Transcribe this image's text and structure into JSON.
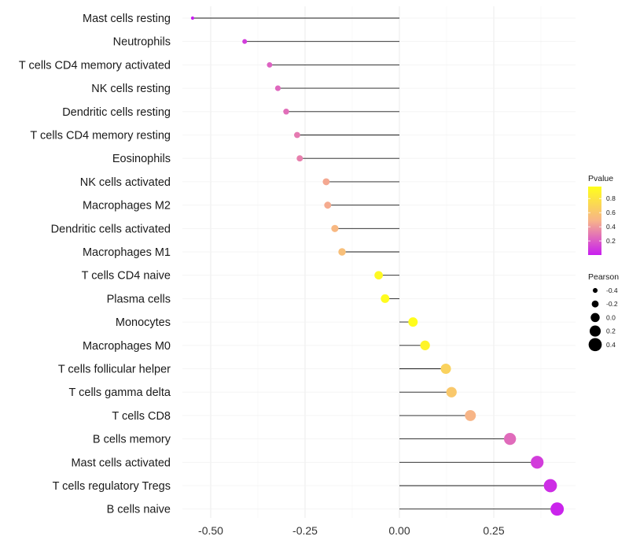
{
  "chart_data": {
    "type": "lollipop",
    "title": "",
    "xlabel": "",
    "ylabel": "",
    "xlim": [
      -0.55,
      0.45
    ],
    "xticks": [
      -0.5,
      -0.25,
      0.0,
      0.25
    ],
    "xtick_labels": [
      "-0.50",
      "-0.25",
      "0.00",
      "0.25"
    ],
    "grid": true,
    "categories": [
      "Mast cells resting",
      "Neutrophils",
      "T cells CD4 memory activated",
      "NK cells resting",
      "Dendritic cells resting",
      "T cells CD4 memory resting",
      "Eosinophils",
      "NK cells activated",
      "Macrophages M2",
      "Dendritic cells activated",
      "Macrophages M1",
      "T cells CD4 naive",
      "Plasma cells",
      "Monocytes",
      "Macrophages M0",
      "T cells follicular helper",
      "T cells gamma delta",
      "T cells CD8",
      "B cells memory",
      "Mast cells activated",
      "T cells regulatory  Tregs",
      "B cells naive"
    ],
    "pearson": [
      -0.548,
      -0.41,
      -0.344,
      -0.322,
      -0.3,
      -0.271,
      -0.264,
      -0.194,
      -0.19,
      -0.171,
      -0.152,
      -0.055,
      -0.038,
      0.036,
      0.068,
      0.123,
      0.138,
      0.188,
      0.293,
      0.365,
      0.4,
      0.418
    ],
    "pvalue": [
      0.0,
      0.1,
      0.22,
      0.24,
      0.26,
      0.3,
      0.32,
      0.45,
      0.46,
      0.52,
      0.56,
      0.93,
      0.95,
      0.96,
      0.9,
      0.68,
      0.62,
      0.5,
      0.25,
      0.1,
      0.05,
      0.02
    ],
    "legend": {
      "color": {
        "title": "Pvalue",
        "ticks": [
          0.8,
          0.6,
          0.4,
          0.2
        ],
        "tick_labels": [
          "0.8",
          "0.6",
          "0.4",
          "0.2"
        ],
        "range": [
          0.0,
          0.97
        ],
        "colors": [
          "#c81ef0",
          "#f7b38a",
          "#ffff1a"
        ]
      },
      "size": {
        "title": "Pearson",
        "values": [
          -0.4,
          -0.2,
          0.0,
          0.2,
          0.4
        ],
        "labels": [
          "-0.4",
          "-0.2",
          "0.0",
          "0.2",
          "0.4"
        ],
        "placement": "right"
      }
    }
  }
}
